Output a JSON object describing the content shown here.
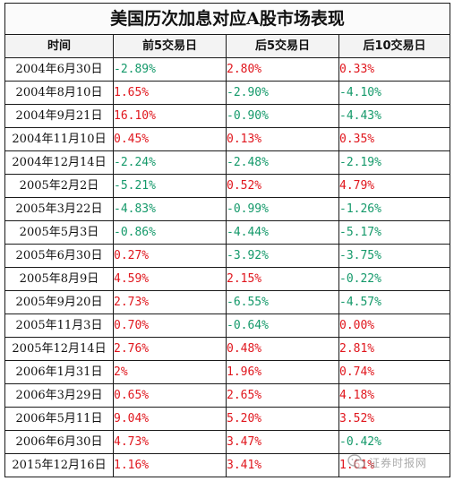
{
  "title": "美国历次加息对应A股市场表现",
  "headers": [
    "时间",
    "前5交易日",
    "后5交易日",
    "后10交易日"
  ],
  "rows": [
    {
      "date": "2004年6月30日",
      "pre5": "-2.89%",
      "post5": "2.80%",
      "post10": "0.33%"
    },
    {
      "date": "2004年8月10日",
      "pre5": "1.65%",
      "post5": "-2.90%",
      "post10": "-4.10%"
    },
    {
      "date": "2004年9月21日",
      "pre5": "16.10%",
      "post5": "-0.90%",
      "post10": "-4.43%"
    },
    {
      "date": "2004年11月10日",
      "pre5": "0.45%",
      "post5": "0.13%",
      "post10": "0.35%"
    },
    {
      "date": "2004年12月14日",
      "pre5": "-2.24%",
      "post5": "-2.48%",
      "post10": "-2.19%"
    },
    {
      "date": "2005年2月2日",
      "pre5": "-5.21%",
      "post5": "0.52%",
      "post10": "4.79%"
    },
    {
      "date": "2005年3月22日",
      "pre5": "-4.83%",
      "post5": "-0.99%",
      "post10": "-1.26%"
    },
    {
      "date": "2005年5月3日",
      "pre5": "-0.86%",
      "post5": "-4.44%",
      "post10": "-5.17%"
    },
    {
      "date": "2005年6月30日",
      "pre5": "0.27%",
      "post5": "-3.92%",
      "post10": "-3.75%"
    },
    {
      "date": "2005年8月9日",
      "pre5": "4.59%",
      "post5": "2.15%",
      "post10": "-0.22%"
    },
    {
      "date": "2005年9月20日",
      "pre5": "2.73%",
      "post5": "-6.55%",
      "post10": "-4.57%"
    },
    {
      "date": "2005年11月3日",
      "pre5": "0.70%",
      "post5": "-0.64%",
      "post10": "0.00%"
    },
    {
      "date": "2005年12月14日",
      "pre5": "2.76%",
      "post5": "0.48%",
      "post10": "2.81%"
    },
    {
      "date": "2006年1月31日",
      "pre5": "2%",
      "post5": "1.96%",
      "post10": "0.74%"
    },
    {
      "date": "2006年3月29日",
      "pre5": "0.65%",
      "post5": "2.65%",
      "post10": "4.18%"
    },
    {
      "date": "2006年5月11日",
      "pre5": "9.04%",
      "post5": "5.20%",
      "post10": "3.52%"
    },
    {
      "date": "2006年6月30日",
      "pre5": "4.73%",
      "post5": "3.47%",
      "post10": "-0.42%"
    },
    {
      "date": "2015年12月16日",
      "pre5": "1.16%",
      "post5": "3.41%",
      "post10": "1.61%"
    }
  ],
  "watermark": {
    "icon": "wechat-bubble-icon",
    "text": "证券时报网"
  },
  "colors": {
    "positive": "#e0161d",
    "negative": "#14996a",
    "border": "#1a1a1a"
  }
}
